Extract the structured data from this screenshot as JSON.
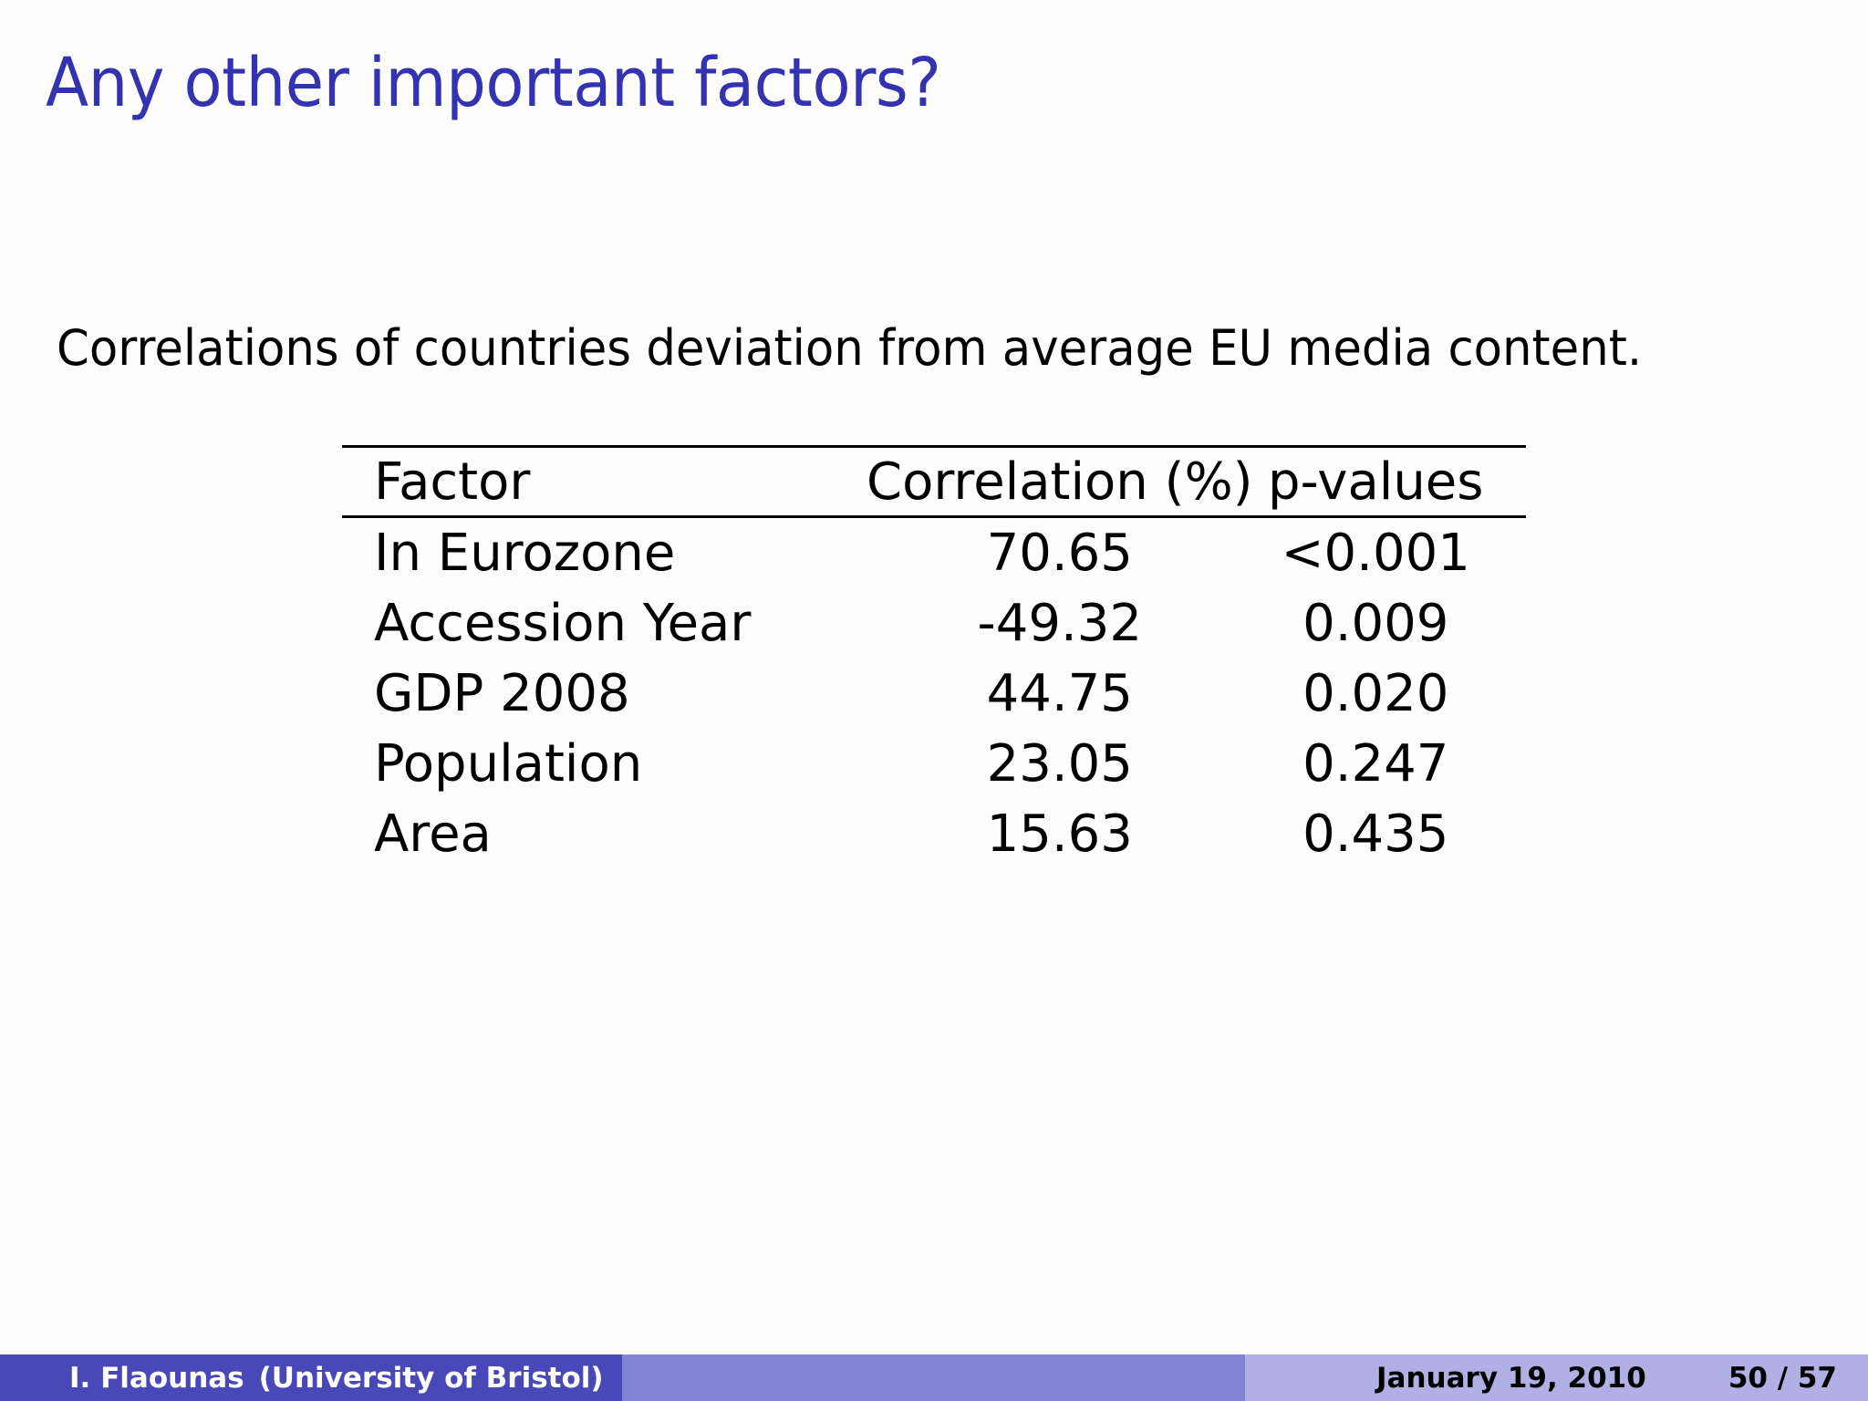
{
  "slide": {
    "title": "Any other important factors?",
    "intro": "Correlations of countries deviation from average EU media content."
  },
  "table": {
    "headers": [
      "Factor",
      "Correlation (%)",
      "p-values"
    ],
    "rows": [
      [
        "In Eurozone",
        "70.65",
        "<0.001"
      ],
      [
        "Accession Year",
        "-49.32",
        "0.009"
      ],
      [
        "GDP 2008",
        "44.75",
        "0.020"
      ],
      [
        "Population",
        "23.05",
        "0.247"
      ],
      [
        "Area",
        "15.63",
        "0.435"
      ]
    ]
  },
  "footer": {
    "author": "I. Flaounas",
    "institute": "(University of Bristol)",
    "date": "January 19, 2010",
    "page": "50 / 57"
  },
  "colors": {
    "title": "#3333b2",
    "footer_left": "#4848b8",
    "footer_mid": "#8484d4",
    "footer_right": "#b0b0e4"
  }
}
